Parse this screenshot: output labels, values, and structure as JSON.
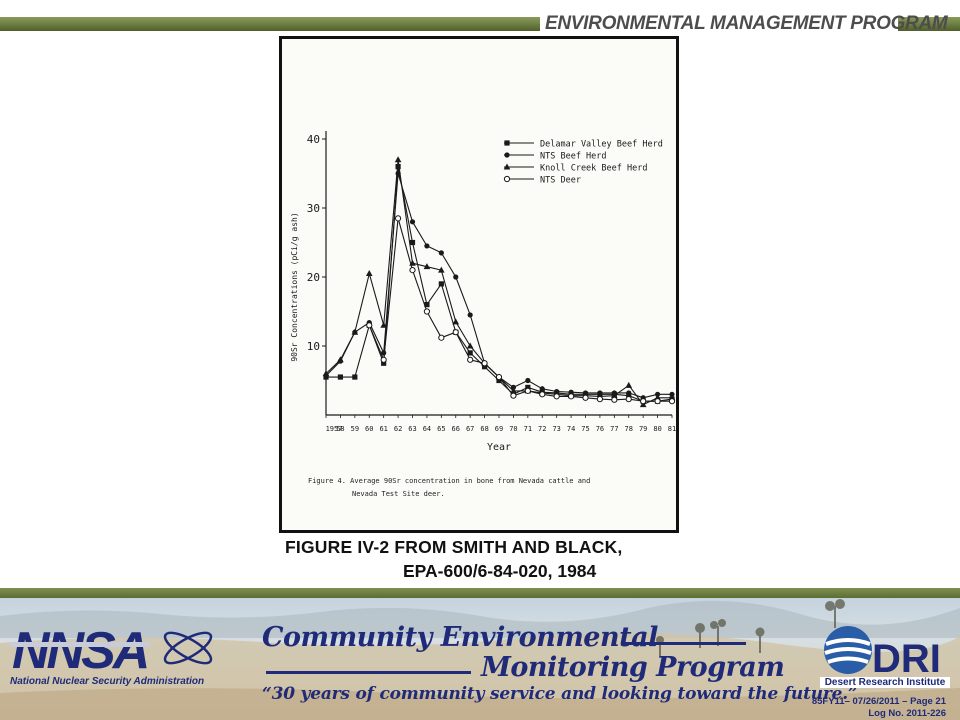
{
  "header": {
    "title": "ENVIRONMENTAL MANAGEMENT PROGRAM"
  },
  "figure": {
    "caption_line1": "Figure 4.  Average 90Sr concentration in bone from Nevada cattle and",
    "caption_line2": "Nevada Test Site deer.",
    "title_line1": "FIGURE IV-2  FROM SMITH AND BLACK,",
    "title_line2": "EPA-600/6-84-020, 1984"
  },
  "chart_data": {
    "type": "line",
    "title": "",
    "xlabel": "Year",
    "ylabel": "90Sr Concentrations (pCi/g ash)",
    "x": [
      1957,
      1958,
      1959,
      1960,
      1961,
      1962,
      1963,
      1964,
      1965,
      1966,
      1967,
      1968,
      1969,
      1970,
      1971,
      1972,
      1973,
      1974,
      1975,
      1976,
      1977,
      1978,
      1979,
      1980,
      1981
    ],
    "x_tick_labels": [
      "1957",
      "58",
      "59",
      "60",
      "61",
      "62",
      "63",
      "64",
      "65",
      "66",
      "67",
      "68",
      "69",
      "70",
      "71",
      "72",
      "73",
      "74",
      "75",
      "76",
      "77",
      "78",
      "79",
      "80",
      "81"
    ],
    "xlim": [
      1957,
      1981
    ],
    "ylim": [
      0,
      40
    ],
    "y_ticks": [
      10,
      20,
      30,
      40
    ],
    "grid": false,
    "legend_position": "top-right",
    "series": [
      {
        "name": "Delamar Valley Beef Herd",
        "marker": "square-filled",
        "values": [
          5.5,
          5.5,
          5.5,
          13,
          7.5,
          36,
          25,
          16,
          19,
          12,
          9,
          7,
          5,
          3,
          4,
          3.3,
          3.2,
          3,
          3,
          3,
          3,
          2.8,
          2,
          2,
          2.3
        ]
      },
      {
        "name": "NTS Beef Herd",
        "marker": "circle-filled",
        "values": [
          5.7,
          7.8,
          12,
          13.4,
          9,
          35,
          28,
          24.5,
          23.5,
          20,
          14.5,
          7.5,
          5.5,
          4,
          5,
          3.8,
          3.4,
          3.3,
          3.2,
          3.2,
          3.2,
          3.2,
          2.5,
          3,
          3
        ]
      },
      {
        "name": "Knoll Creek Beef Herd",
        "marker": "triangle-filled",
        "values": [
          6,
          8,
          12,
          20.5,
          13,
          37,
          22,
          21.5,
          21,
          13.5,
          10,
          7.5,
          5.5,
          3.5,
          3.5,
          3.2,
          3,
          2.8,
          2.8,
          2.7,
          2.8,
          4.3,
          1.5,
          2.5,
          2.5
        ]
      },
      {
        "name": "NTS Deer",
        "marker": "circle-open",
        "values": [
          null,
          null,
          null,
          13,
          8,
          28.5,
          21,
          15,
          11.2,
          12,
          8,
          7.5,
          5.5,
          2.8,
          3.5,
          3,
          2.7,
          2.7,
          2.5,
          2.3,
          2.2,
          2.3,
          2,
          2,
          2
        ]
      }
    ]
  },
  "footer": {
    "nnsa_logo": "NNSA",
    "nnsa_name": "National Nuclear Security Administration",
    "program_line1": "Community Environmental",
    "program_line2": "Monitoring Program",
    "tagline": "“30 years of community service and looking toward the future.”",
    "dri_logo": "DRI",
    "dri_name": "Desert Research Institute",
    "page_ref": "85FY11– 07/26/2011 – Page 21",
    "log_no": "Log No. 2011-226"
  },
  "colors": {
    "olive_band": "#6e7f43",
    "navy": "#1f2a78",
    "header_text": "#4d4d4d"
  }
}
